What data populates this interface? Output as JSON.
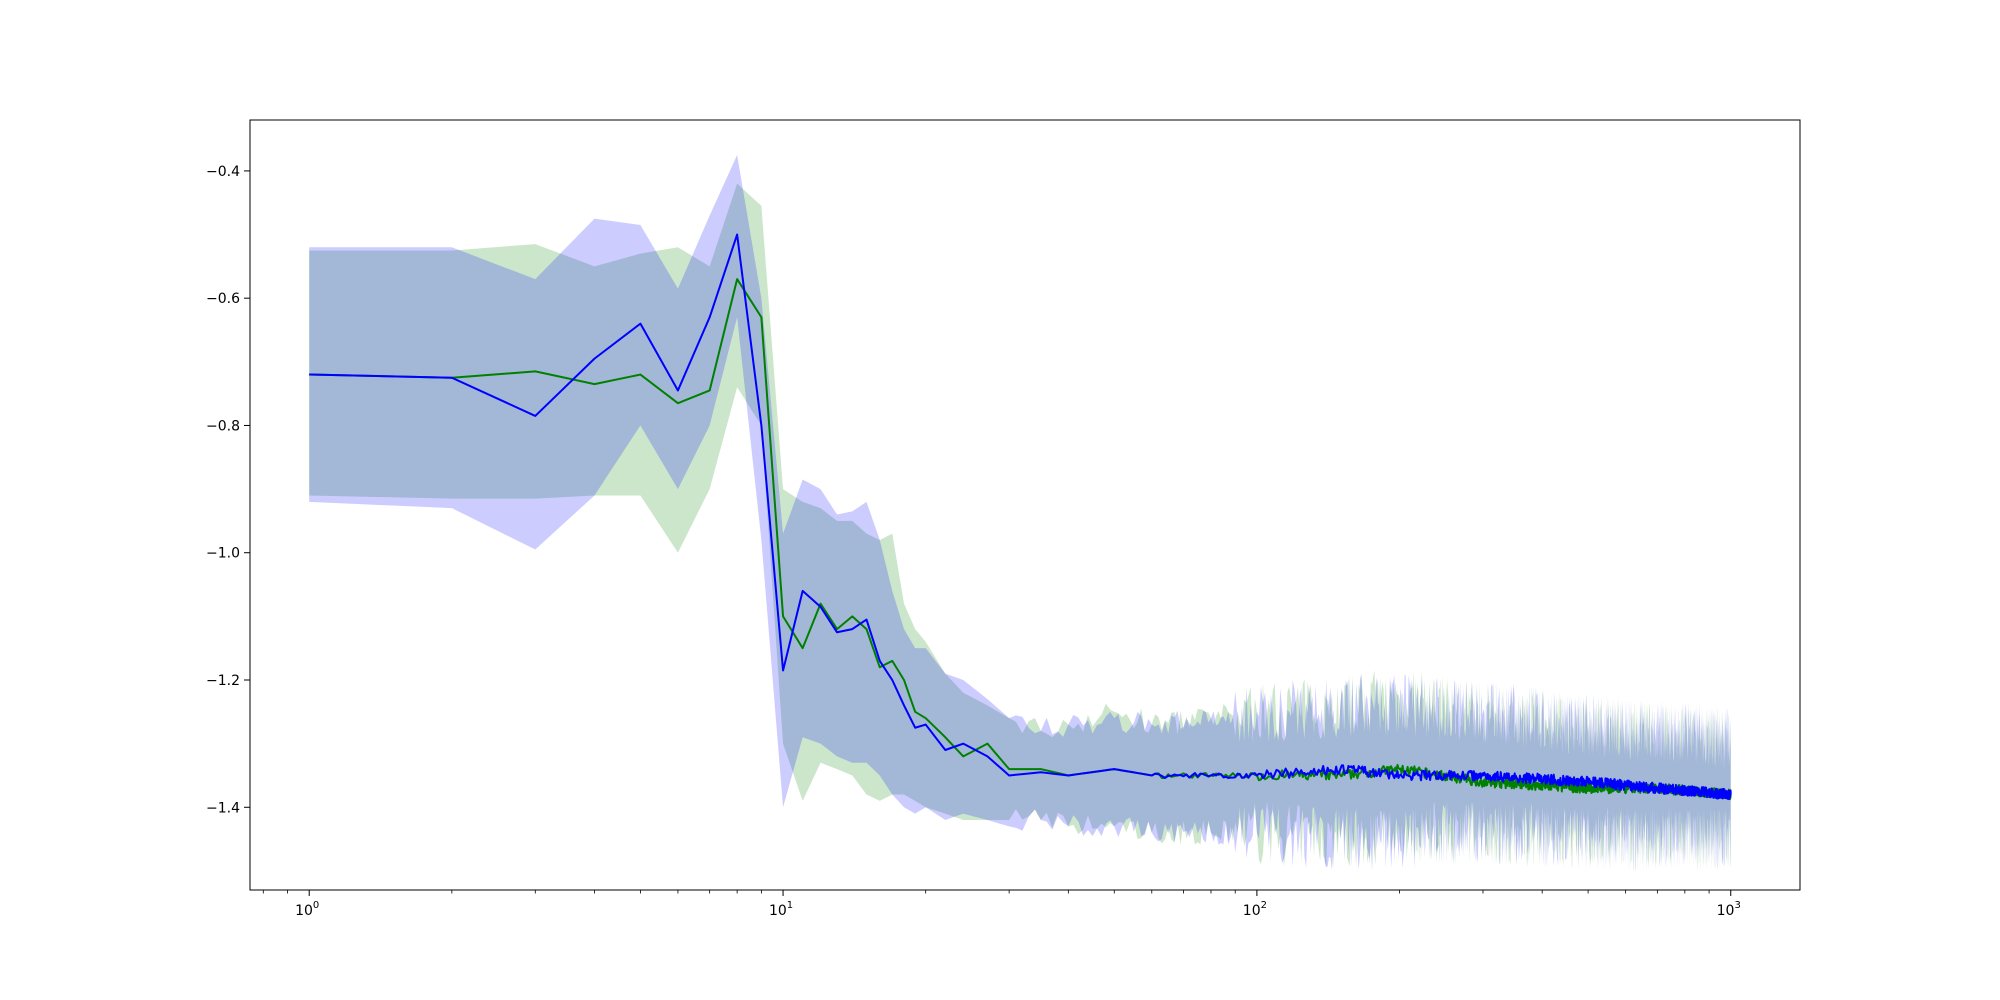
{
  "chart_data": {
    "type": "line",
    "xscale": "log",
    "xlim": [
      0.75,
      1400
    ],
    "ylim": [
      -1.53,
      -0.32
    ],
    "grid": false,
    "legend": "none",
    "xticks": [
      {
        "value": 1,
        "base": "10",
        "exp": "0"
      },
      {
        "value": 10,
        "base": "10",
        "exp": "1"
      },
      {
        "value": 100,
        "base": "10",
        "exp": "2"
      },
      {
        "value": 1000,
        "base": "10",
        "exp": "3"
      }
    ],
    "yticks": [
      {
        "value": -0.4,
        "label": "−0.4"
      },
      {
        "value": -0.6,
        "label": "−0.6"
      },
      {
        "value": -0.8,
        "label": "−0.8"
      },
      {
        "value": -1.0,
        "label": "−1.0"
      },
      {
        "value": -1.2,
        "label": "−1.2"
      },
      {
        "value": -1.4,
        "label": "−1.4"
      }
    ],
    "series": [
      {
        "color": "#008000",
        "band_color": "#008000",
        "x": [
          1,
          2,
          3,
          4,
          5,
          6,
          7,
          8,
          9,
          10,
          11,
          12,
          13,
          14,
          15,
          16,
          17,
          18,
          19,
          20,
          22,
          24,
          27,
          30,
          35,
          40,
          50,
          60,
          80,
          100,
          150,
          200,
          300,
          500,
          700,
          1000
        ],
        "y": [
          -0.72,
          -0.725,
          -0.715,
          -0.735,
          -0.72,
          -0.765,
          -0.745,
          -0.57,
          -0.63,
          -1.1,
          -1.15,
          -1.08,
          -1.12,
          -1.1,
          -1.12,
          -1.18,
          -1.17,
          -1.2,
          -1.25,
          -1.26,
          -1.29,
          -1.32,
          -1.3,
          -1.34,
          -1.34,
          -1.35,
          -1.34,
          -1.35,
          -1.35,
          -1.35,
          -1.35,
          -1.34,
          -1.36,
          -1.37,
          -1.37,
          -1.38
        ],
        "upper": [
          -0.525,
          -0.525,
          -0.515,
          -0.55,
          -0.53,
          -0.52,
          -0.55,
          -0.42,
          -0.455,
          -0.9,
          -0.92,
          -0.93,
          -0.95,
          -0.95,
          -0.97,
          -0.98,
          -0.97,
          -1.08,
          -1.12,
          -1.14,
          -1.19,
          -1.22,
          -1.24,
          -1.26,
          -1.28,
          -1.27,
          -1.25,
          -1.27,
          -1.26,
          -1.25,
          -1.24,
          -1.23,
          -1.25,
          -1.27,
          -1.28,
          -1.29
        ],
        "lower": [
          -0.91,
          -0.915,
          -0.915,
          -0.91,
          -0.91,
          -1.0,
          -0.9,
          -0.74,
          -0.8,
          -1.3,
          -1.39,
          -1.33,
          -1.34,
          -1.35,
          -1.38,
          -1.39,
          -1.38,
          -1.38,
          -1.39,
          -1.4,
          -1.41,
          -1.42,
          -1.42,
          -1.42,
          -1.42,
          -1.43,
          -1.43,
          -1.44,
          -1.44,
          -1.44,
          -1.45,
          -1.44,
          -1.44,
          -1.45,
          -1.45,
          -1.45
        ]
      },
      {
        "color": "#0000ff",
        "band_color": "#0000ff",
        "x": [
          1,
          2,
          3,
          4,
          5,
          6,
          7,
          8,
          9,
          10,
          11,
          12,
          13,
          14,
          15,
          16,
          17,
          18,
          19,
          20,
          22,
          24,
          27,
          30,
          35,
          40,
          50,
          60,
          80,
          100,
          150,
          200,
          300,
          500,
          700,
          1000
        ],
        "y": [
          -0.72,
          -0.725,
          -0.785,
          -0.695,
          -0.64,
          -0.745,
          -0.63,
          -0.5,
          -0.8,
          -1.185,
          -1.06,
          -1.085,
          -1.125,
          -1.12,
          -1.105,
          -1.17,
          -1.2,
          -1.24,
          -1.275,
          -1.27,
          -1.31,
          -1.3,
          -1.32,
          -1.35,
          -1.345,
          -1.35,
          -1.34,
          -1.35,
          -1.35,
          -1.35,
          -1.34,
          -1.35,
          -1.35,
          -1.36,
          -1.37,
          -1.38
        ],
        "upper": [
          -0.52,
          -0.52,
          -0.57,
          -0.475,
          -0.485,
          -0.585,
          -0.47,
          -0.375,
          -0.6,
          -0.97,
          -0.885,
          -0.9,
          -0.94,
          -0.935,
          -0.92,
          -0.98,
          -1.06,
          -1.12,
          -1.15,
          -1.15,
          -1.19,
          -1.2,
          -1.23,
          -1.26,
          -1.28,
          -1.27,
          -1.26,
          -1.27,
          -1.26,
          -1.25,
          -1.24,
          -1.24,
          -1.25,
          -1.27,
          -1.28,
          -1.29
        ],
        "lower": [
          -0.92,
          -0.93,
          -0.995,
          -0.91,
          -0.8,
          -0.9,
          -0.8,
          -0.63,
          -0.98,
          -1.4,
          -1.29,
          -1.3,
          -1.32,
          -1.33,
          -1.33,
          -1.35,
          -1.38,
          -1.4,
          -1.41,
          -1.4,
          -1.42,
          -1.41,
          -1.42,
          -1.43,
          -1.42,
          -1.43,
          -1.43,
          -1.44,
          -1.44,
          -1.44,
          -1.45,
          -1.45,
          -1.44,
          -1.45,
          -1.45,
          -1.45
        ]
      }
    ]
  }
}
